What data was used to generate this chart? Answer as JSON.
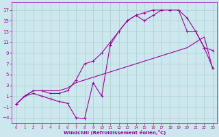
{
  "xlabel": "Windchill (Refroidissement éolien,°C)",
  "bg_color": "#cce8ee",
  "grid_color": "#aacccc",
  "line_color": "#990099",
  "xlim": [
    -0.5,
    23.5
  ],
  "ylim": [
    -4,
    18.5
  ],
  "xticks": [
    0,
    1,
    2,
    3,
    4,
    5,
    6,
    7,
    8,
    9,
    10,
    11,
    12,
    13,
    14,
    15,
    16,
    17,
    18,
    19,
    20,
    21,
    22,
    23
  ],
  "yticks": [
    -3,
    -1,
    1,
    3,
    5,
    7,
    9,
    11,
    13,
    15,
    17
  ],
  "line1_x": [
    0,
    1,
    2,
    3,
    4,
    5,
    6,
    7,
    8,
    9,
    10,
    11,
    12,
    13,
    14,
    15,
    16,
    17,
    18,
    19,
    20,
    21,
    22,
    23
  ],
  "line1_y": [
    -0.5,
    1,
    2,
    2,
    2,
    2,
    2.5,
    3.5,
    4,
    4.5,
    5,
    5.5,
    6,
    6.5,
    7,
    7.5,
    8,
    8.5,
    9,
    9.5,
    10,
    11,
    12,
    6
  ],
  "line2_x": [
    0,
    1,
    2,
    3,
    4,
    5,
    6,
    7,
    8,
    9,
    10,
    11,
    12,
    13,
    14,
    15,
    16,
    17,
    18,
    19,
    20,
    21,
    22,
    23
  ],
  "line2_y": [
    -0.5,
    1,
    1.5,
    1,
    0.5,
    0,
    -0.3,
    -3,
    -3.2,
    3.5,
    1,
    10.5,
    13,
    15,
    16,
    15,
    16,
    17,
    17,
    17,
    15.5,
    13,
    10,
    6.2
  ],
  "line3_x": [
    0,
    1,
    2,
    3,
    4,
    5,
    6,
    7,
    8,
    9,
    10,
    11,
    12,
    13,
    14,
    15,
    16,
    17,
    18,
    19,
    20,
    21,
    22,
    23
  ],
  "line3_y": [
    -0.5,
    1,
    2,
    2,
    1.5,
    1.5,
    2,
    4,
    7,
    7.5,
    9,
    11,
    13,
    15,
    16,
    16.5,
    17,
    17,
    17,
    17,
    13,
    13,
    10,
    9.5
  ]
}
